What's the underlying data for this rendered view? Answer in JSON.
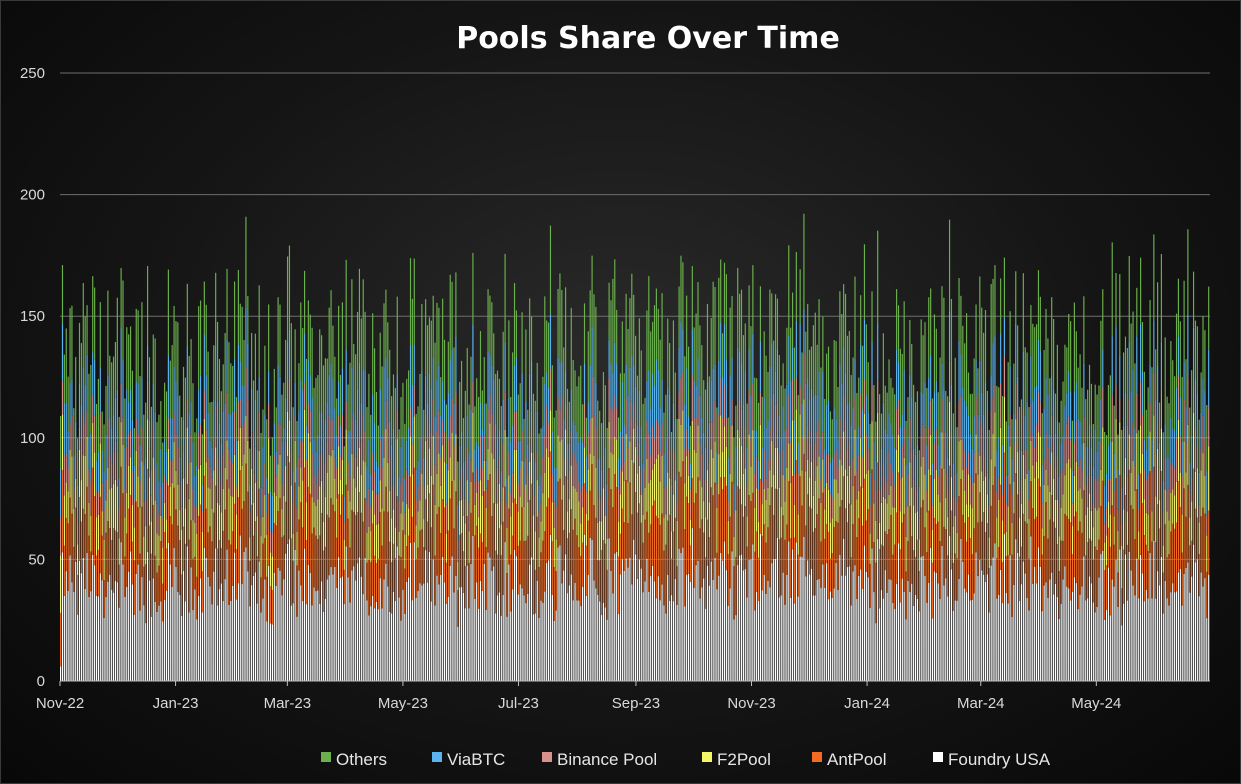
{
  "chart_data": {
    "type": "bar",
    "stacked": true,
    "title": "Pools Share Over Time",
    "xlabel": "",
    "ylabel": "",
    "ylim": [
      0,
      250
    ],
    "yticks": [
      0,
      50,
      100,
      150,
      200,
      250
    ],
    "x_tick_labels": [
      "Nov-22",
      "Jan-23",
      "Mar-23",
      "May-23",
      "Jul-23",
      "Sep-23",
      "Nov-23",
      "Jan-24",
      "Mar-24",
      "May-24"
    ],
    "x_range": [
      "2022-11-01",
      "2024-06-30"
    ],
    "grid": "horizontal",
    "legend_position": "bottom",
    "series": [
      {
        "name": "Foundry USA",
        "color": "#ffffff",
        "mean_value": 40
      },
      {
        "name": "AntPool",
        "color": "#f26b21",
        "mean_value": 24
      },
      {
        "name": "F2Pool",
        "color": "#f5f56a",
        "mean_value": 17
      },
      {
        "name": "Binance Pool",
        "color": "#d9918c",
        "mean_value": 13
      },
      {
        "name": "ViaBTC",
        "color": "#5ab4f0",
        "mean_value": 17
      },
      {
        "name": "Others",
        "color": "#6ab04c",
        "mean_value": 25
      }
    ],
    "legend_order": [
      "Others",
      "ViaBTC",
      "Binance Pool",
      "F2Pool",
      "AntPool",
      "Foundry USA"
    ],
    "daily_total_range": [
      120,
      187
    ],
    "num_bars": 608
  }
}
